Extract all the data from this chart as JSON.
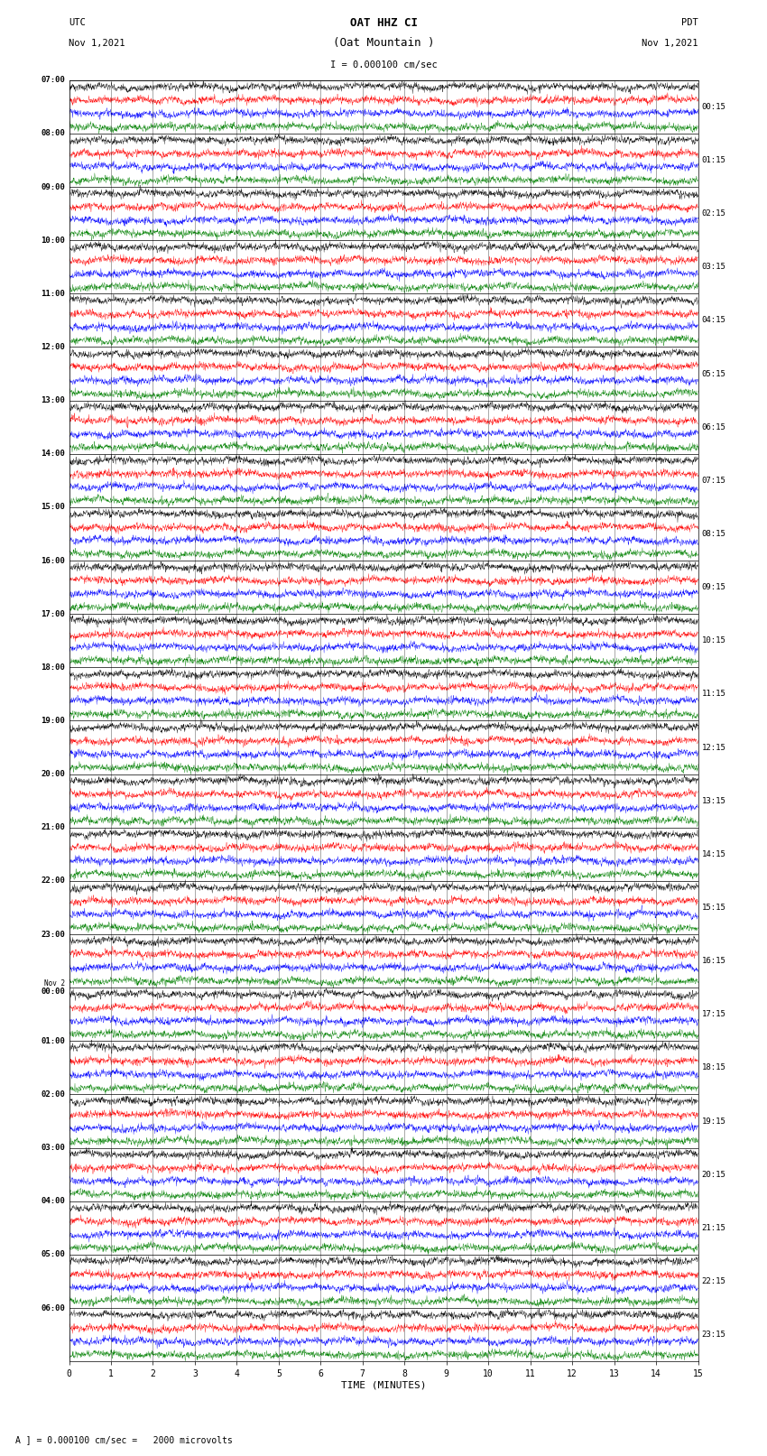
{
  "title_line1": "OAT HHZ CI",
  "title_line2": "(Oat Mountain )",
  "scale_label": "I = 0.000100 cm/sec",
  "utc_label": "UTC",
  "utc_date": "Nov 1,2021",
  "pdt_label": "PDT",
  "pdt_date": "Nov 1,2021",
  "bottom_label": "A ] = 0.000100 cm/sec =   2000 microvolts",
  "xlabel": "TIME (MINUTES)",
  "left_times": [
    "07:00",
    "08:00",
    "09:00",
    "10:00",
    "11:00",
    "12:00",
    "13:00",
    "14:00",
    "15:00",
    "16:00",
    "17:00",
    "18:00",
    "19:00",
    "20:00",
    "21:00",
    "22:00",
    "23:00",
    "Nov 2\n00:00",
    "01:00",
    "02:00",
    "03:00",
    "04:00",
    "05:00",
    "06:00"
  ],
  "right_times": [
    "00:15",
    "01:15",
    "02:15",
    "03:15",
    "04:15",
    "05:15",
    "06:15",
    "07:15",
    "08:15",
    "09:15",
    "10:15",
    "11:15",
    "12:15",
    "13:15",
    "14:15",
    "15:15",
    "16:15",
    "17:15",
    "18:15",
    "19:15",
    "20:15",
    "21:15",
    "22:15",
    "23:15"
  ],
  "n_rows": 24,
  "n_subrows": 4,
  "minutes_per_row": 15,
  "colors": [
    "black",
    "red",
    "blue",
    "green"
  ],
  "bg_color": "white",
  "fig_width": 8.5,
  "fig_height": 16.13,
  "dpi": 100
}
